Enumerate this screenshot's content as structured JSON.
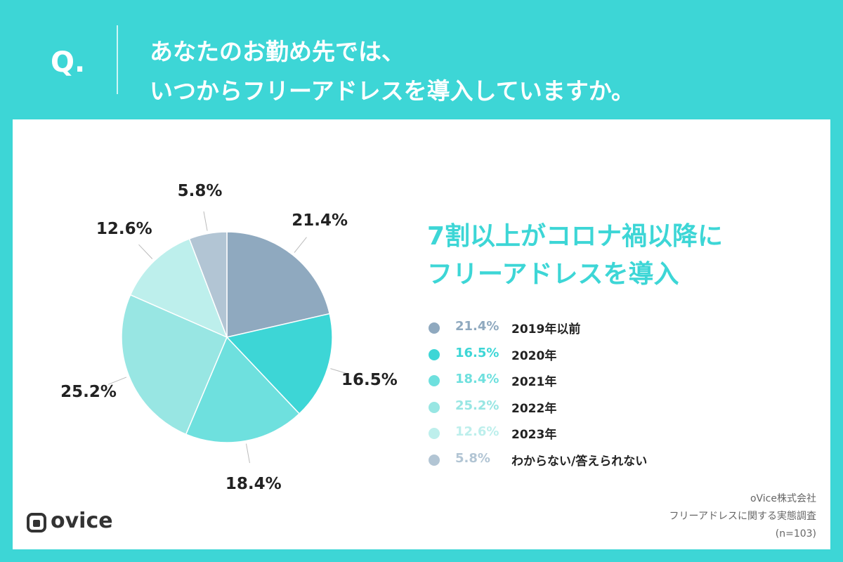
{
  "header": {
    "q_mark": "Q.",
    "question_line1": "あなたのお勤め先では、",
    "question_line2": "いつからフリーアドレスを導入していますか。"
  },
  "headline": {
    "line1": "7割以上がコロナ禍以降に",
    "line2": "フリーアドレスを導入"
  },
  "chart_data": {
    "type": "pie",
    "start": "12 o'clock",
    "direction": "clockwise",
    "slices": [
      {
        "label": "2019年以前",
        "value": 21.4,
        "display": "21.4%",
        "color": "#8fa9bf"
      },
      {
        "label": "2020年",
        "value": 16.5,
        "display": "16.5%",
        "color": "#3dd6d6"
      },
      {
        "label": "2021年",
        "value": 18.4,
        "display": "18.4%",
        "color": "#6ee0de"
      },
      {
        "label": "2022年",
        "value": 25.2,
        "display": "25.2%",
        "color": "#98e6e3"
      },
      {
        "label": "2023年",
        "value": 12.6,
        "display": "12.6%",
        "color": "#bdefec"
      },
      {
        "label": "わからない/答えられない",
        "value": 5.8,
        "display": "5.8%",
        "color": "#b2c5d4"
      }
    ]
  },
  "source": {
    "company": "oVice株式会社",
    "survey": "フリーアドレスに関する実態調査",
    "sample": "(n=103)"
  },
  "logo": {
    "text": "ovice",
    "icon": "ovice-logo-icon"
  }
}
